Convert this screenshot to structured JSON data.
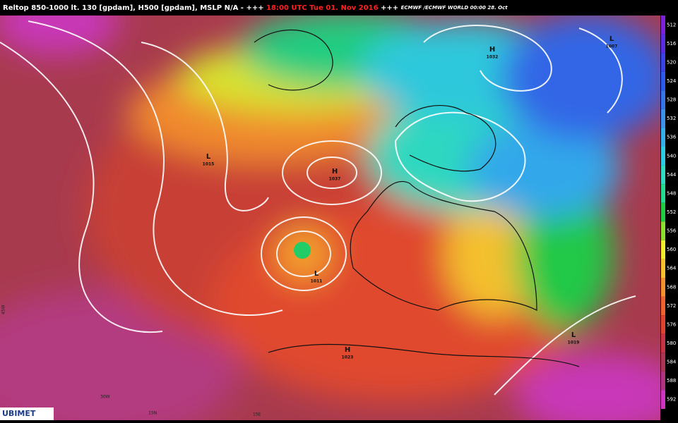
{
  "header": {
    "prefix": "Reltop 850-1000 lt. 130 [gpdam], H500 [gpdam], MSLP N/A - +++",
    "time": "18:00 UTC Tue 01. Nov 2016",
    "separator": "+++",
    "run": "ECMWF /ECMWF WORLD 00:00 28. Oct"
  },
  "colorbar": {
    "labels": [
      512,
      516,
      520,
      524,
      528,
      532,
      536,
      540,
      544,
      548,
      552,
      556,
      560,
      564,
      568,
      572,
      576,
      580,
      584,
      588,
      592
    ],
    "colors": [
      "#7a22d8",
      "#5a2ee0",
      "#3a44e4",
      "#2c5ce8",
      "#3676e8",
      "#3a94ea",
      "#32b2ea",
      "#2ecce2",
      "#2edcc4",
      "#22dc92",
      "#22cc44",
      "#8ede2e",
      "#f2ec2e",
      "#f6c22e",
      "#f6922e",
      "#ee6430",
      "#de4430",
      "#c63444",
      "#ae3454",
      "#ae3482",
      "#d034c2"
    ]
  },
  "pressure_systems": [
    {
      "kind": "H",
      "value": "1032"
    },
    {
      "kind": "H",
      "value": "1037"
    },
    {
      "kind": "L",
      "value": "1015"
    },
    {
      "kind": "L",
      "value": "1011"
    },
    {
      "kind": "H",
      "value": "1023"
    },
    {
      "kind": "L",
      "value": "1019"
    },
    {
      "kind": "L",
      "value": "1007"
    }
  ],
  "grid_labels": [
    "30W",
    "15N",
    "15E",
    "45W"
  ],
  "logo": "UBIMET"
}
